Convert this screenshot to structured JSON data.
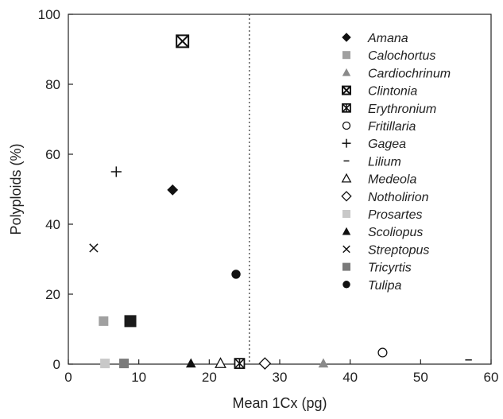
{
  "chart_data": {
    "type": "scatter",
    "title": "",
    "xlabel": "Mean 1Cx (pg)",
    "ylabel": "Polyploids (%)",
    "xlim": [
      0,
      60
    ],
    "ylim": [
      0,
      100
    ],
    "xticks": [
      "0",
      "10",
      "20",
      "30",
      "40",
      "50",
      "60"
    ],
    "yticks": [
      "0",
      "20",
      "40",
      "60",
      "80",
      "100"
    ],
    "grid": false,
    "legend_position": "right",
    "reference_line": {
      "axis": "x",
      "value": 25.7,
      "style": "dotted"
    },
    "series": [
      {
        "name": "Amana",
        "marker": "diamond-filled",
        "color": "#111111",
        "points": [
          [
            14.8,
            49.8
          ]
        ]
      },
      {
        "name": "Calochortus",
        "marker": "square-filled",
        "color": "#a0a0a0",
        "points": [
          [
            5.0,
            12.3
          ]
        ]
      },
      {
        "name": "Cardiochrinum",
        "marker": "triangle-filled",
        "color": "#8a8a8a",
        "points": [
          [
            36.2,
            0.2
          ]
        ]
      },
      {
        "name": "Clintonia",
        "marker": "square-x",
        "color": "#111111",
        "points": [
          [
            16.2,
            92.3
          ]
        ]
      },
      {
        "name": "Erythronium",
        "marker": "square-asterisk",
        "color": "#111111",
        "points": [
          [
            24.3,
            0.2
          ]
        ]
      },
      {
        "name": "Fritillaria",
        "marker": "circle-open",
        "color": "#111111",
        "points": [
          [
            44.6,
            3.3
          ]
        ]
      },
      {
        "name": "Gagea",
        "marker": "plus",
        "color": "#111111",
        "points": [
          [
            6.8,
            55.0
          ]
        ]
      },
      {
        "name": "Lilium",
        "marker": "minus",
        "color": "#111111",
        "points": [
          [
            56.8,
            1.2
          ]
        ]
      },
      {
        "name": "Medeola",
        "marker": "triangle-open",
        "color": "#111111",
        "points": [
          [
            21.6,
            0.2
          ]
        ]
      },
      {
        "name": "Notholirion",
        "marker": "diamond-open",
        "color": "#111111",
        "points": [
          [
            27.9,
            0.2
          ]
        ]
      },
      {
        "name": "Prosartes",
        "marker": "square-filled",
        "color": "#c8c8c8",
        "points": [
          [
            5.2,
            0.2
          ]
        ]
      },
      {
        "name": "Scoliopus",
        "marker": "triangle-filled",
        "color": "#111111",
        "points": [
          [
            17.4,
            0.2
          ]
        ]
      },
      {
        "name": "Streptopus",
        "marker": "x",
        "color": "#111111",
        "points": [
          [
            3.6,
            33.2
          ]
        ]
      },
      {
        "name": "Tricyrtis",
        "marker": "square-filled",
        "color": "#7a7a7a",
        "points": [
          [
            7.9,
            0.2
          ]
        ]
      },
      {
        "name": "Tulipa",
        "marker": "circle-filled",
        "color": "#111111",
        "points": [
          [
            23.8,
            25.7
          ]
        ]
      },
      {
        "name": "",
        "marker": "square-filled",
        "color": "#1a1a1a",
        "points": [
          [
            8.8,
            12.3
          ]
        ]
      }
    ]
  }
}
